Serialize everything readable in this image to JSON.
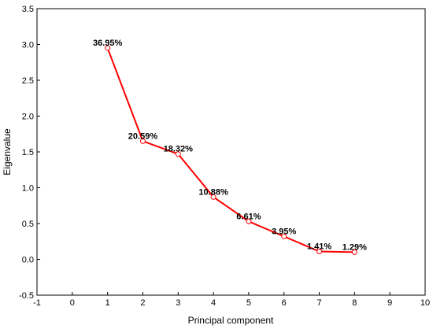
{
  "chart_data": {
    "type": "line",
    "title": "",
    "xlabel": "Principal component",
    "ylabel": "Eigenvalue",
    "xlim": [
      -1,
      10
    ],
    "ylim": [
      -0.5,
      3.5
    ],
    "x_ticks": [
      -1,
      0,
      1,
      2,
      3,
      4,
      5,
      6,
      7,
      8,
      9,
      10
    ],
    "y_ticks": [
      "-0.5",
      "0.0",
      "0.5",
      "1.0",
      "1.5",
      "2.0",
      "2.5",
      "3.0",
      "3.5"
    ],
    "grid": false,
    "series": [
      {
        "x": [
          1,
          2,
          3,
          4,
          5,
          6,
          7,
          8
        ],
        "values": [
          2.95,
          1.65,
          1.47,
          0.87,
          0.53,
          0.32,
          0.11,
          0.1
        ],
        "labels": [
          "36.95%",
          "20.59%",
          "18.32%",
          "10.88%",
          "6.61%",
          "3.95%",
          "1.41%",
          "1.29%"
        ],
        "color": "#ff0000"
      }
    ]
  }
}
